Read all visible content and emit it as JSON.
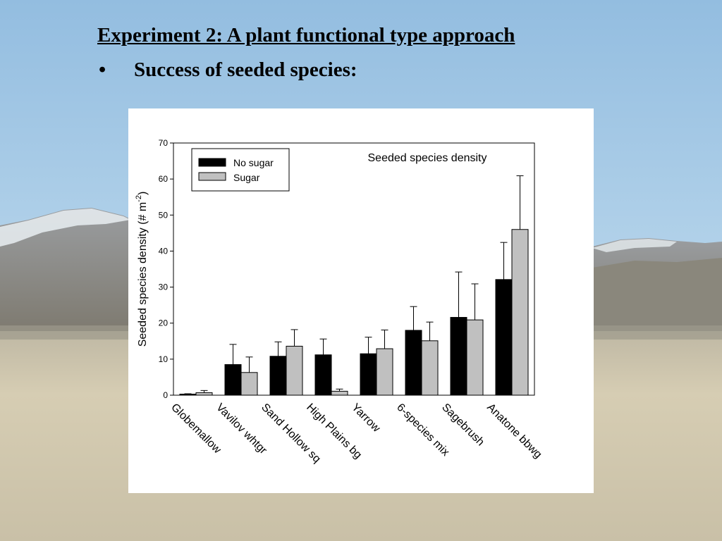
{
  "slide": {
    "title": "Experiment 2: A plant functional type approach",
    "bullet_symbol": "•",
    "bullet_text": "Success of seeded species:"
  },
  "background": {
    "description": "landscape photo",
    "sky_color": "#a9c9e3",
    "mountain_color": "#8f8f8c",
    "grass_color": "#cfc6ae"
  },
  "chart_data": {
    "type": "bar",
    "title": "Seeded species density",
    "ylabel_prefix": "Seeded species density (# m",
    "ylabel_superscript": "-2",
    "ylabel_suffix": ")",
    "xlabel": "",
    "ylim": [
      0,
      70
    ],
    "yticks": [
      0,
      10,
      20,
      30,
      40,
      50,
      60,
      70
    ],
    "categories": [
      "Globemallow",
      "Vavilov whtgr",
      "Sand Hollow sq",
      "High Plains bg",
      "Yarrow",
      "6-species mix",
      "Sagebrush",
      "Anatone bbwg"
    ],
    "series": [
      {
        "name": "No sugar",
        "color": "#000000",
        "values": [
          0.3,
          8.5,
          10.8,
          11.2,
          11.5,
          18.0,
          21.6,
          32.1
        ],
        "errors": [
          0.1,
          5.6,
          4.0,
          4.4,
          4.6,
          6.6,
          12.6,
          10.3
        ]
      },
      {
        "name": "Sugar",
        "color": "#c0c0c0",
        "values": [
          0.7,
          6.3,
          13.6,
          1.1,
          12.9,
          15.1,
          20.9,
          46.0
        ],
        "errors": [
          0.6,
          4.3,
          4.6,
          0.6,
          5.2,
          5.2,
          10.0,
          14.9
        ]
      }
    ],
    "legend_position": "top-left",
    "grid": false
  }
}
